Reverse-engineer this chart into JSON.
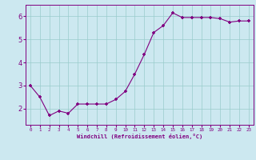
{
  "x": [
    0,
    1,
    2,
    3,
    4,
    5,
    6,
    7,
    8,
    9,
    10,
    11,
    12,
    13,
    14,
    15,
    16,
    17,
    18,
    19,
    20,
    21,
    22,
    23
  ],
  "y": [
    3.0,
    2.5,
    1.7,
    1.9,
    1.8,
    2.2,
    2.2,
    2.2,
    2.2,
    2.4,
    2.75,
    3.5,
    4.35,
    5.3,
    5.6,
    6.15,
    5.95,
    5.95,
    5.95,
    5.95,
    5.9,
    5.75,
    5.8,
    5.8
  ],
  "line_color": "#800080",
  "marker_color": "#800080",
  "bg_color": "#cce8f0",
  "grid_color": "#99cccc",
  "xlabel": "Windchill (Refroidissement éolien,°C)",
  "ylim": [
    1.3,
    6.5
  ],
  "yticks": [
    2,
    3,
    4,
    5,
    6
  ],
  "xtick_labels": [
    "0",
    "1",
    "2",
    "3",
    "4",
    "5",
    "6",
    "7",
    "8",
    "9",
    "10",
    "11",
    "12",
    "13",
    "14",
    "15",
    "16",
    "17",
    "18",
    "19",
    "20",
    "21",
    "22",
    "23"
  ]
}
